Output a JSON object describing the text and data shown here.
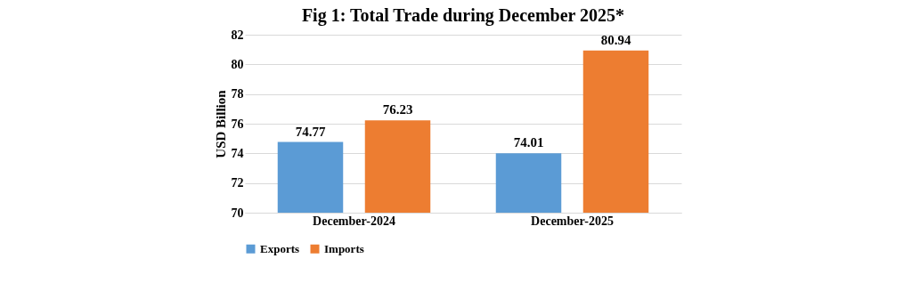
{
  "chart_data": {
    "type": "bar",
    "title": "Fig 1: Total Trade during December 2025*",
    "ylabel": "USD Billion",
    "categories": [
      "December-2024",
      "December-2025"
    ],
    "series": [
      {
        "name": "Exports",
        "color": "#5b9bd5",
        "values": [
          74.77,
          74.01
        ]
      },
      {
        "name": "Imports",
        "color": "#ed7d31",
        "values": [
          76.23,
          80.94
        ]
      }
    ],
    "ylim": [
      70,
      82
    ],
    "yticks": [
      70,
      72,
      74,
      76,
      78,
      80,
      82
    ],
    "grid": "y",
    "legend": "bottom",
    "data_labels": true
  }
}
